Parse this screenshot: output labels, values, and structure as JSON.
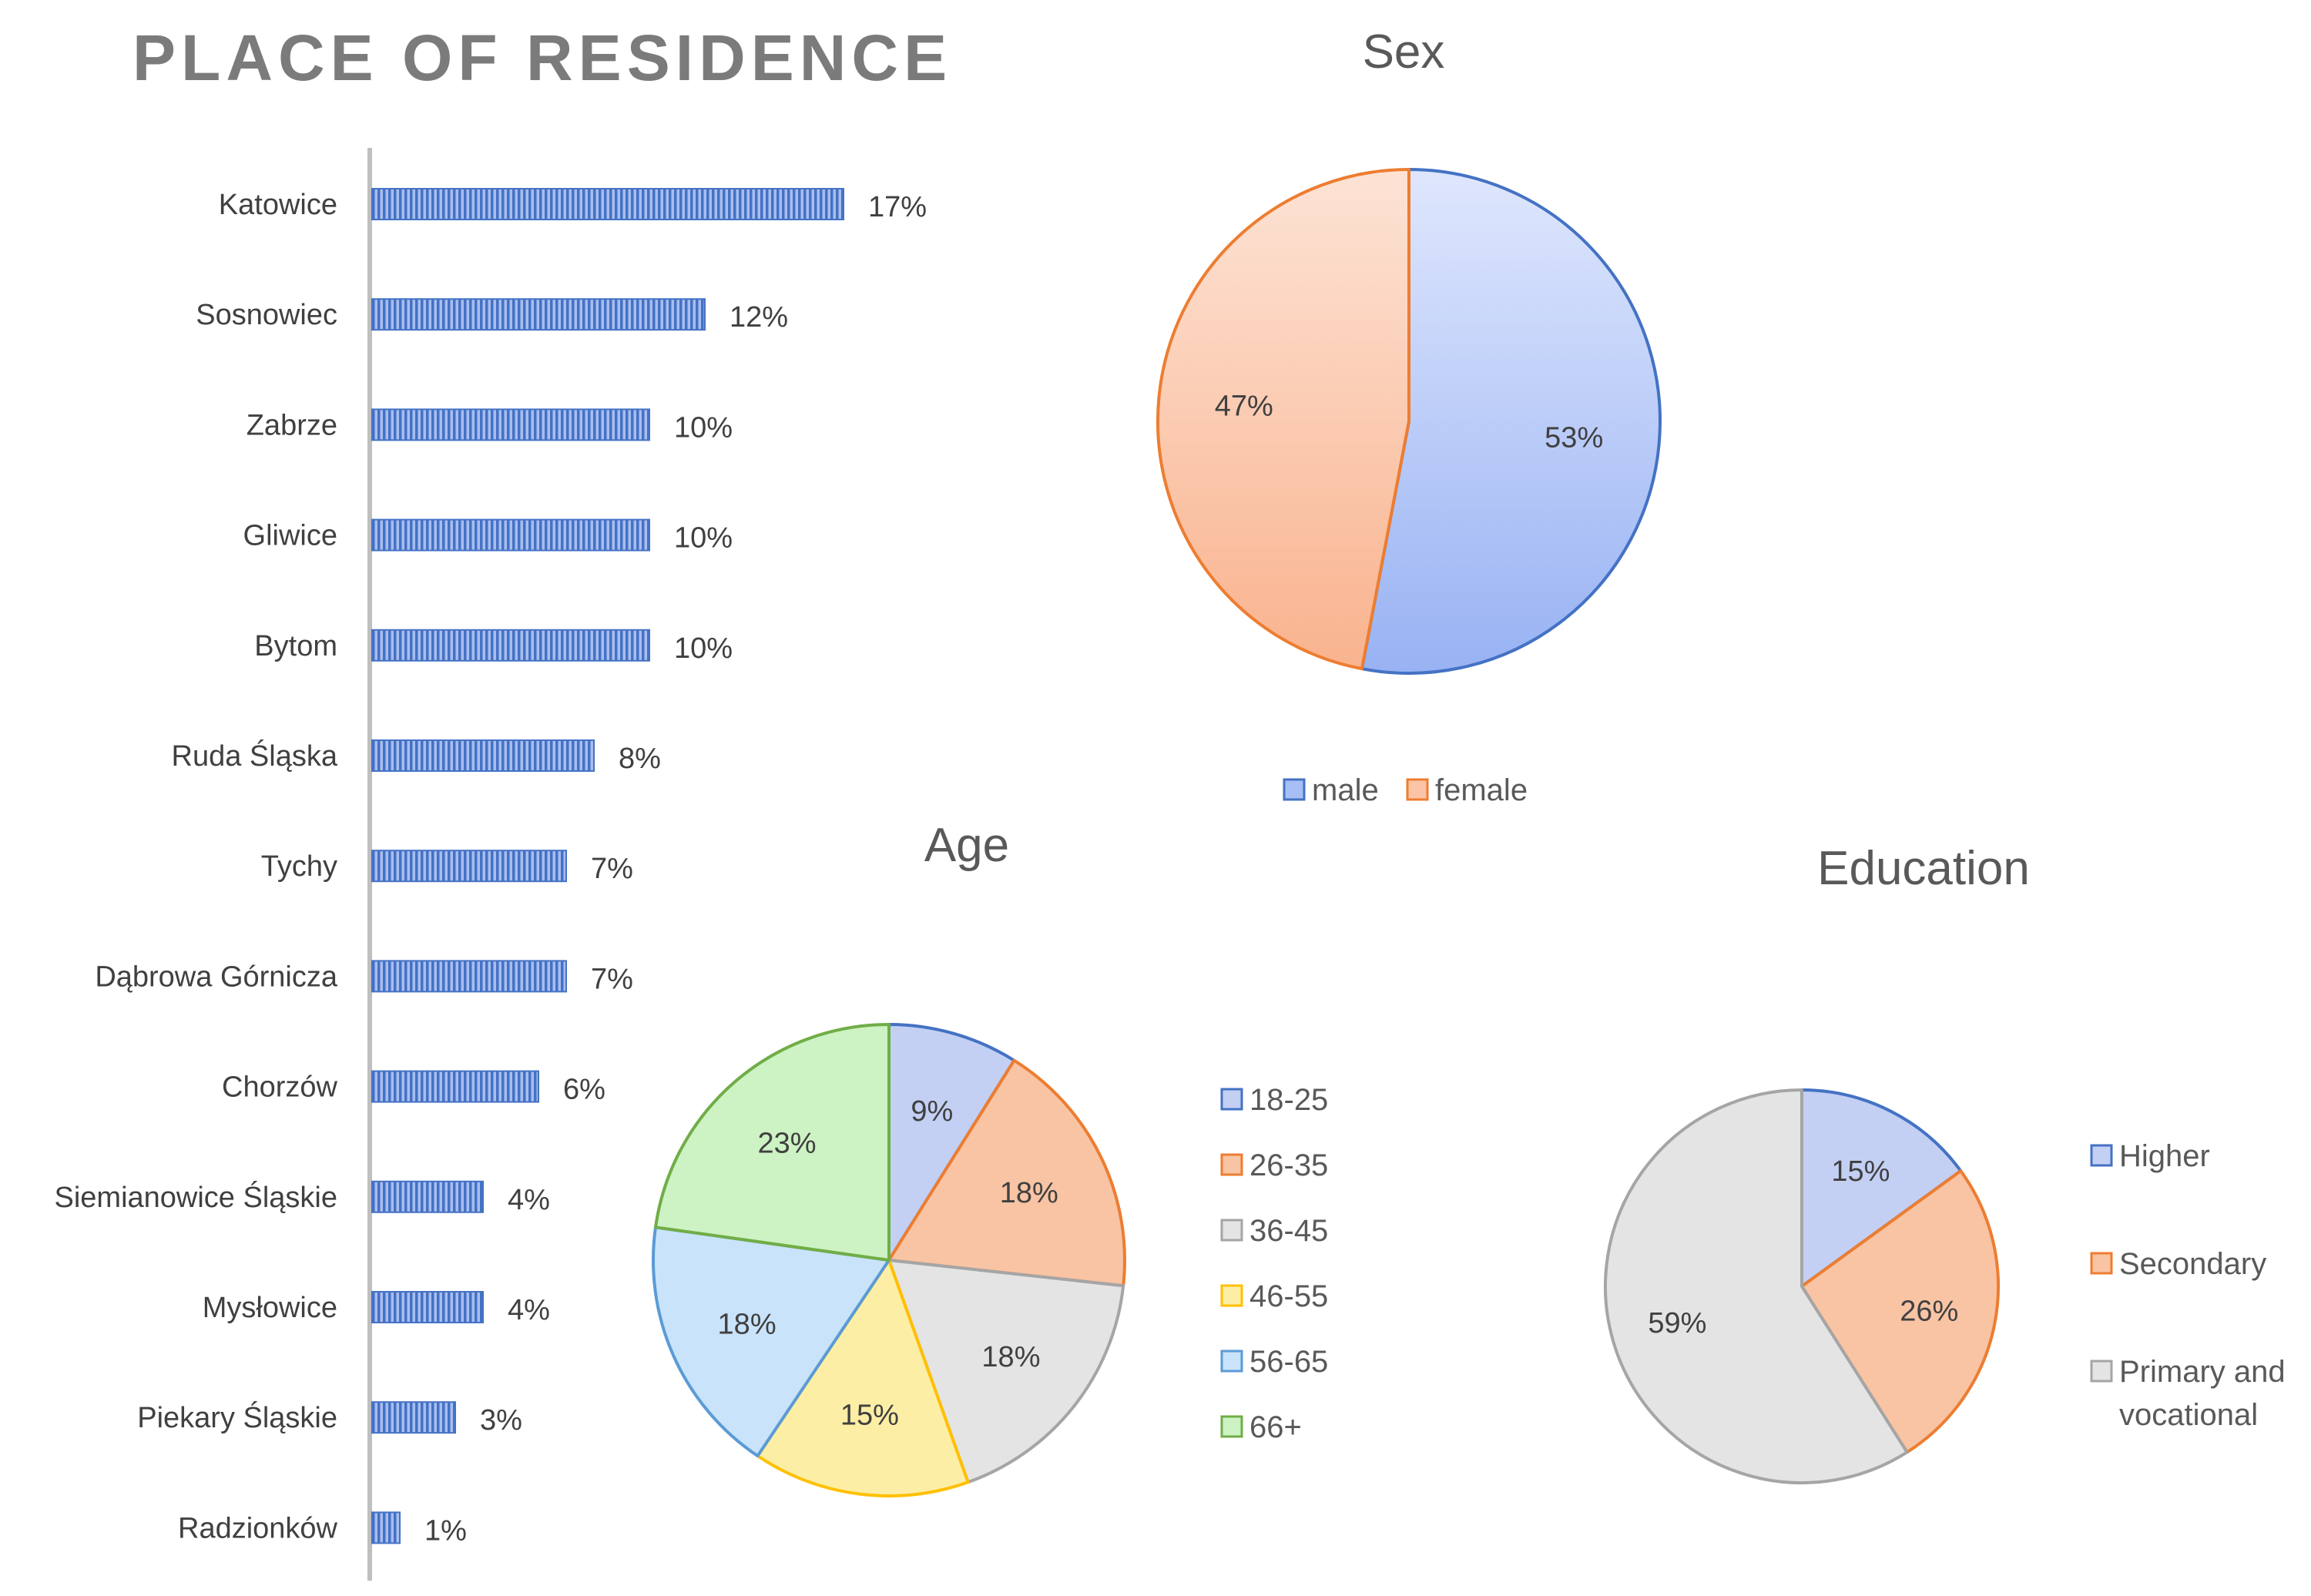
{
  "chart_data": [
    {
      "type": "bar",
      "orientation": "horizontal",
      "title": "PLACE OF RESIDENCE",
      "categories": [
        "Katowice",
        "Sosnowiec",
        "Zabrze",
        "Gliwice",
        "Bytom",
        "Ruda Śląska",
        "Tychy",
        "Dąbrowa Górnicza",
        "Chorzów",
        "Siemianowice Śląskie",
        "Mysłowice",
        "Piekary Śląskie",
        "Radzionków"
      ],
      "values": [
        17,
        12,
        10,
        10,
        10,
        8,
        7,
        7,
        6,
        4,
        4,
        3,
        1
      ],
      "value_labels": [
        "17%",
        "12%",
        "10%",
        "10%",
        "10%",
        "8%",
        "7%",
        "7%",
        "6%",
        "4%",
        "4%",
        "3%",
        "1%"
      ],
      "xlim": [
        0,
        17
      ],
      "color": "#4472c4"
    },
    {
      "type": "pie",
      "title": "Sex",
      "labels": [
        "male",
        "female"
      ],
      "values": [
        53,
        47
      ],
      "value_labels": [
        "53%",
        "47%"
      ],
      "colors": [
        "#a8bff5",
        "#fbc4a6"
      ],
      "edge_colors": [
        "#4472c4",
        "#ed7d31"
      ],
      "legend_position": "bottom"
    },
    {
      "type": "pie",
      "title": "Age",
      "labels": [
        "18-25",
        "26-35",
        "36-45",
        "46-55",
        "56-65",
        "66+"
      ],
      "values": [
        9,
        18,
        18,
        15,
        18,
        23
      ],
      "value_labels": [
        "9%",
        "18%",
        "18%",
        "15%",
        "18%",
        "23%"
      ],
      "colors": [
        "#c3d0f4",
        "#f8c4a4",
        "#e4e4e4",
        "#fdeea6",
        "#c9e3fa",
        "#cdf2c3"
      ],
      "edge_colors": [
        "#4472c4",
        "#ed7d31",
        "#a5a5a5",
        "#ffc000",
        "#5b9bd5",
        "#70ad47"
      ],
      "legend_position": "right"
    },
    {
      "type": "pie",
      "title": "Education",
      "labels": [
        "Higher",
        "Secondary",
        "Primary and vocational"
      ],
      "legend_lines": [
        [
          "Higher"
        ],
        [
          "Secondary"
        ],
        [
          "Primary and",
          "vocational"
        ]
      ],
      "values": [
        15,
        26,
        59
      ],
      "value_labels": [
        "15%",
        "26%",
        "59%"
      ],
      "colors": [
        "#c3d0f4",
        "#f8c4a4",
        "#e4e4e4"
      ],
      "edge_colors": [
        "#4472c4",
        "#ed7d31",
        "#a5a5a5"
      ],
      "legend_position": "right"
    }
  ]
}
